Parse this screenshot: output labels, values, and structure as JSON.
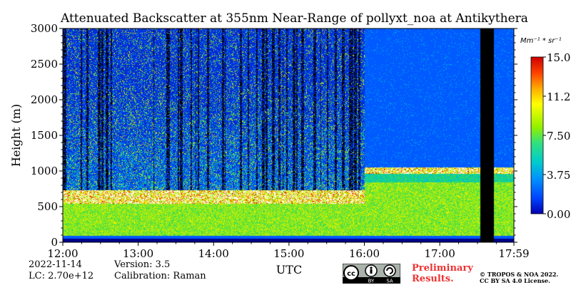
{
  "chart_data": {
    "type": "heatmap",
    "title": "Attenuated Backscatter at 355nm Near-Range of pollyxt_noa at Antikythera",
    "xlabel": "UTC",
    "ylabel": "Height (m)",
    "x_ticks": [
      "12:00",
      "13:00",
      "14:00",
      "15:00",
      "16:00",
      "17:00",
      "17:59"
    ],
    "y_ticks": [
      "0",
      "500",
      "1000",
      "1500",
      "2000",
      "2500",
      "3000"
    ],
    "xlim": [
      "12:00",
      "17:59"
    ],
    "ylim": [
      0,
      3000
    ],
    "colorbar": {
      "unit": "Mm⁻¹ * sr⁻¹",
      "range": [
        0.0,
        15.0
      ],
      "ticks": [
        "15.00",
        "11.25",
        "7.50",
        "3.75",
        "0.00"
      ],
      "colors": [
        "#0000b0",
        "#0044ff",
        "#0090ff",
        "#00cccc",
        "#30e080",
        "#90f000",
        "#ffff00",
        "#ffaa00",
        "#ff4000",
        "#cc0000"
      ]
    },
    "no_data_interval": [
      "17:32",
      "17:43"
    ],
    "boundary_layer_top_m": {
      "12:00-16:00": 700,
      "16:00-17:59": 1000
    }
  },
  "footer": {
    "date": "2022-11-14",
    "lc": "LC: 2.70e+12",
    "version": "Version: 3.5",
    "calibration": "Calibration: Raman",
    "preliminary": "Preliminary Results.",
    "copyright": "© TROPOS & NOA 2022. CC BY SA 4.0 License.",
    "cc_icon": "cc-by-sa-icon"
  }
}
